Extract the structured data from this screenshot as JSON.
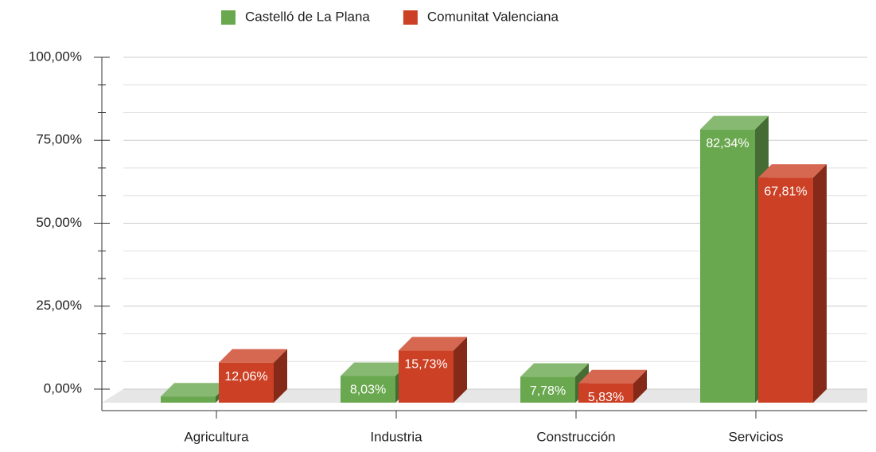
{
  "chart_data": {
    "type": "bar3d",
    "categories": [
      "Agricultura",
      "Industria",
      "Construcción",
      "Servicios"
    ],
    "series": [
      {
        "name": "Castelló de La Plana",
        "color": "#6aa84f",
        "values": [
          1.87,
          8.03,
          7.78,
          82.34
        ],
        "value_labels": [
          null,
          "8,03%",
          "7,78%",
          "82,34%"
        ]
      },
      {
        "name": "Comunitat Valenciana",
        "color": "#cc4125",
        "values": [
          12.06,
          15.73,
          5.83,
          67.81
        ],
        "value_labels": [
          "12,06%",
          "15,73%",
          "5,83%",
          "67,81%"
        ]
      }
    ],
    "ylim": [
      0,
      100
    ],
    "yticks": [
      {
        "value": 0,
        "label": "0,00%"
      },
      {
        "value": 25,
        "label": "25,00%"
      },
      {
        "value": 50,
        "label": "50,00%"
      },
      {
        "value": 75,
        "label": "75,00%"
      },
      {
        "value": 100,
        "label": "100,00%"
      }
    ],
    "minor_per_major": 3,
    "grid": true,
    "legend": "top"
  }
}
